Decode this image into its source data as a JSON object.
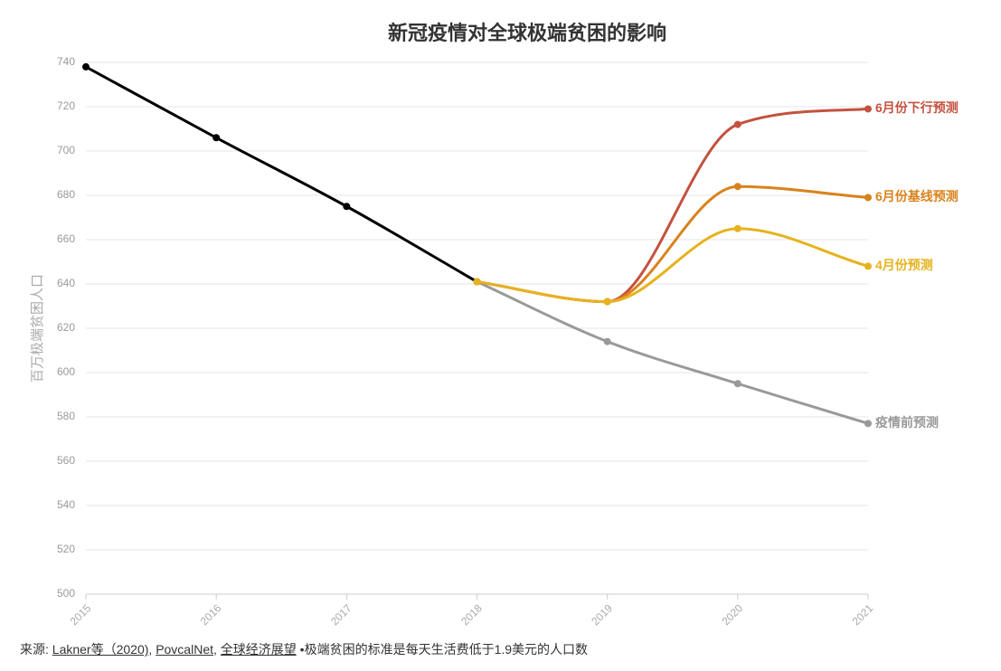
{
  "chart_data": {
    "type": "line",
    "title": "新冠疫情对全球极端贫困的影响",
    "y_label": "百万极端贫困人口",
    "categories": [
      "2015",
      "2016",
      "2017",
      "2018",
      "2019",
      "2020",
      "2021"
    ],
    "ylim": [
      500,
      740
    ],
    "yticks": [
      500,
      520,
      540,
      560,
      580,
      600,
      620,
      640,
      660,
      680,
      700,
      720,
      740
    ],
    "grid": true,
    "series": [
      {
        "color": "#000000",
        "values": [
          738,
          706,
          675,
          641,
          null,
          null,
          null
        ]
      },
      {
        "name": "疫情前预测",
        "color": "#999999",
        "values": [
          null,
          null,
          null,
          641,
          614,
          595,
          577
        ]
      },
      {
        "name": "6月份下行预测",
        "color": "#c4513f",
        "values": [
          null,
          null,
          null,
          641,
          632,
          712,
          719
        ]
      },
      {
        "name": "6月份基线预测",
        "color": "#d9821c",
        "values": [
          null,
          null,
          null,
          641,
          632,
          684,
          679
        ]
      },
      {
        "name": "4月份预测",
        "color": "#e6b21e",
        "values": [
          null,
          null,
          null,
          641,
          632,
          665,
          648
        ]
      }
    ]
  },
  "source": {
    "label": "来源:",
    "links": [
      "Lakner等（2020)",
      "PovcalNet",
      "全球经济展望"
    ],
    "separator": ",",
    "bullet": "•",
    "note": "极端贫困的标准是每天生活费低于1.9美元的人口数"
  }
}
